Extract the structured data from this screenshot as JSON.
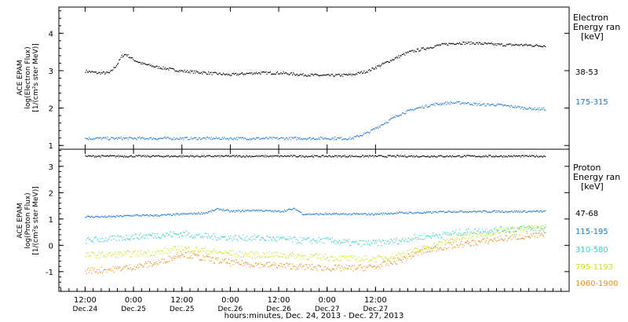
{
  "chart_data": [
    {
      "type": "scatter",
      "panel": "electron",
      "ylabel": [
        "ACE EPAM",
        "log(Electron Flux)",
        "[1/(cm²s ster MeV)]"
      ],
      "ylim": [
        0.9,
        4.7
      ],
      "yticks": [
        1,
        2,
        3,
        4
      ],
      "legend_title": [
        "Electron",
        "Energy ran",
        "[keV]"
      ],
      "series": [
        {
          "name": "38-53",
          "color": "#000000",
          "x": [
            0,
            3,
            6,
            8,
            9,
            10,
            12,
            14,
            18,
            24,
            30,
            36,
            42,
            48,
            54,
            60,
            66,
            70,
            74,
            78,
            80,
            84,
            88,
            92,
            96,
            100,
            104,
            108,
            112,
            114
          ],
          "y": [
            3.0,
            2.95,
            2.95,
            3.2,
            3.4,
            3.45,
            3.3,
            3.2,
            3.1,
            3.0,
            2.95,
            2.9,
            2.95,
            2.95,
            2.9,
            2.88,
            2.9,
            3.0,
            3.2,
            3.4,
            3.5,
            3.6,
            3.7,
            3.75,
            3.75,
            3.72,
            3.7,
            3.7,
            3.68,
            3.68
          ]
        },
        {
          "name": "175-315",
          "color": "#1e78d4",
          "x": [
            0,
            6,
            12,
            18,
            24,
            30,
            36,
            42,
            48,
            54,
            60,
            66,
            70,
            74,
            78,
            82,
            86,
            90,
            94,
            98,
            102,
            106,
            110,
            114
          ],
          "y": [
            1.2,
            1.2,
            1.2,
            1.2,
            1.2,
            1.2,
            1.2,
            1.2,
            1.2,
            1.2,
            1.2,
            1.2,
            1.35,
            1.6,
            1.85,
            2.0,
            2.1,
            2.15,
            2.15,
            2.1,
            2.1,
            2.05,
            2.0,
            1.98
          ]
        }
      ]
    },
    {
      "type": "scatter",
      "panel": "proton",
      "ylabel": [
        "ACE EPAM",
        "log(Proton Flux)",
        "[1/(cm²s ster MeV)]"
      ],
      "ylim": [
        -1.75,
        3.65
      ],
      "yticks": [
        -1,
        0,
        1,
        2,
        3
      ],
      "legend_title": [
        "Proton",
        "Energy ran",
        "[keV]"
      ],
      "series": [
        {
          "name": "47-68",
          "color": "#000000",
          "x": [
            0,
            20,
            40,
            60,
            80,
            100,
            114
          ],
          "y": [
            3.4,
            3.4,
            3.4,
            3.4,
            3.4,
            3.4,
            3.4
          ]
        },
        {
          "name": "115-195",
          "color": "#1e78d4",
          "x": [
            0,
            6,
            12,
            18,
            24,
            30,
            33,
            36,
            42,
            48,
            52,
            54,
            60,
            66,
            72,
            78,
            84,
            90,
            96,
            102,
            108,
            114
          ],
          "y": [
            1.1,
            1.1,
            1.15,
            1.15,
            1.2,
            1.25,
            1.4,
            1.3,
            1.35,
            1.3,
            1.4,
            1.2,
            1.2,
            1.2,
            1.2,
            1.25,
            1.25,
            1.3,
            1.3,
            1.3,
            1.3,
            1.3
          ]
        },
        {
          "name": "310-580",
          "color": "#35d0c8",
          "x": [
            0,
            6,
            12,
            18,
            24,
            30,
            36,
            42,
            48,
            54,
            60,
            66,
            72,
            78,
            84,
            90,
            96,
            102,
            108,
            114
          ],
          "y": [
            0.2,
            0.25,
            0.35,
            0.4,
            0.45,
            0.35,
            0.3,
            0.3,
            0.25,
            0.2,
            0.2,
            0.1,
            0.1,
            0.2,
            0.35,
            0.45,
            0.55,
            0.6,
            0.65,
            0.65
          ]
        },
        {
          "name": "795-1193",
          "color": "#c8e614",
          "x": [
            0,
            6,
            12,
            18,
            24,
            30,
            36,
            42,
            48,
            54,
            60,
            66,
            72,
            78,
            84,
            90,
            96,
            102,
            108,
            114
          ],
          "y": [
            -0.35,
            -0.35,
            -0.3,
            -0.25,
            -0.1,
            -0.2,
            -0.3,
            -0.35,
            -0.35,
            -0.4,
            -0.45,
            -0.5,
            -0.5,
            -0.35,
            -0.1,
            0.2,
            0.4,
            0.55,
            0.65,
            0.7
          ]
        },
        {
          "name": "1060-1900",
          "color": "#f08c14",
          "x": [
            0,
            6,
            12,
            18,
            24,
            30,
            36,
            42,
            48,
            54,
            60,
            66,
            72,
            78,
            84,
            90,
            96,
            102,
            108,
            114
          ],
          "y": [
            -0.95,
            -0.9,
            -0.8,
            -0.65,
            -0.3,
            -0.5,
            -0.65,
            -0.7,
            -0.75,
            -0.8,
            -0.85,
            -0.85,
            -0.8,
            -0.55,
            -0.2,
            0.0,
            0.1,
            0.25,
            0.35,
            0.4
          ]
        }
      ]
    }
  ],
  "x_axis": {
    "xlim": [
      -6.5,
      120
    ],
    "ticks": [
      {
        "x": 0,
        "line1": "12:00",
        "line2": "Dec.24"
      },
      {
        "x": 12,
        "line1": "0:00",
        "line2": "Dec.25"
      },
      {
        "x": 24,
        "line1": "12:00",
        "line2": "Dec.25"
      },
      {
        "x": 36,
        "line1": "0:00",
        "line2": "Dec.26"
      },
      {
        "x": 48,
        "line1": "12:00",
        "line2": "Dec.26"
      },
      {
        "x": 60,
        "line1": "0:00",
        "line2": "Dec.27"
      },
      {
        "x": 72,
        "line1": "12:00",
        "line2": "Dec.27"
      }
    ],
    "label": "hours:minutes, Dec. 24, 2013 - Dec. 27, 2013"
  }
}
